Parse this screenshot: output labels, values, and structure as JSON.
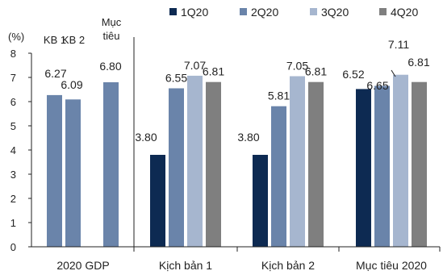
{
  "chart_data": {
    "type": "bar",
    "title": "",
    "ylabel": "(%)",
    "xlabel": "",
    "ylim": [
      0,
      8
    ],
    "yticks": [
      0,
      1,
      2,
      3,
      4,
      5,
      6,
      7,
      8
    ],
    "grid": false,
    "legend_placement": "top-right",
    "groups": [
      {
        "category": "2020 GDP",
        "bars": [
          {
            "name": "KB 1",
            "value": 6.27,
            "color": "#6a84aa",
            "header": "KB 1"
          },
          {
            "name": "KB 2",
            "value": 6.09,
            "color": "#6a84aa",
            "header": "KB 2"
          },
          {
            "name": "Mục tiêu",
            "value": 6.8,
            "color": "#6a84aa",
            "header": "Mục\ntiêu"
          }
        ]
      },
      {
        "category": "Kịch bản 1",
        "bars": [
          {
            "name": "1Q20",
            "value": 3.8,
            "color": "#0d2a52"
          },
          {
            "name": "2Q20",
            "value": 6.55,
            "color": "#6a84aa"
          },
          {
            "name": "3Q20",
            "value": 7.07,
            "color": "#a6b6cf"
          },
          {
            "name": "4Q20",
            "value": 6.81,
            "color": "#7f7f7f"
          }
        ]
      },
      {
        "category": "Kịch bản 2",
        "bars": [
          {
            "name": "1Q20",
            "value": 3.8,
            "color": "#0d2a52"
          },
          {
            "name": "2Q20",
            "value": 5.81,
            "color": "#6a84aa"
          },
          {
            "name": "3Q20",
            "value": 7.05,
            "color": "#a6b6cf"
          },
          {
            "name": "4Q20",
            "value": 6.81,
            "color": "#7f7f7f"
          }
        ]
      },
      {
        "category": "Mục tiêu 2020",
        "bars": [
          {
            "name": "1Q20",
            "value": 6.52,
            "color": "#0d2a52"
          },
          {
            "name": "2Q20",
            "value": 6.65,
            "color": "#6a84aa"
          },
          {
            "name": "3Q20",
            "value": 7.11,
            "color": "#a6b6cf"
          },
          {
            "name": "4Q20",
            "value": 6.81,
            "color": "#7f7f7f"
          }
        ]
      }
    ],
    "legend": [
      {
        "name": "1Q20",
        "color": "#0d2a52"
      },
      {
        "name": "2Q20",
        "color": "#6a84aa"
      },
      {
        "name": "3Q20",
        "color": "#a6b6cf"
      },
      {
        "name": "4Q20",
        "color": "#7f7f7f"
      }
    ]
  }
}
